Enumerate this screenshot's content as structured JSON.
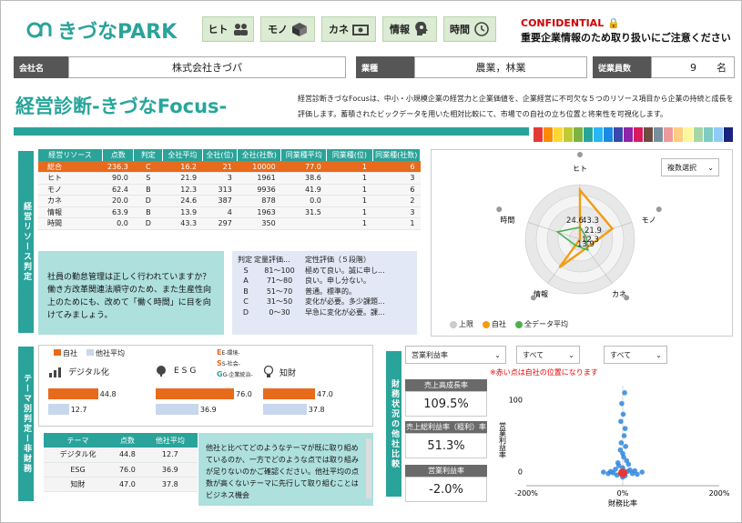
{
  "logo": {
    "text": "きづなPARK"
  },
  "nav": [
    {
      "label": "ヒト",
      "icon": "people-icon"
    },
    {
      "label": "モノ",
      "icon": "box-icon"
    },
    {
      "label": "カネ",
      "icon": "money-icon"
    },
    {
      "label": "情報",
      "icon": "head-gear-icon"
    },
    {
      "label": "時間",
      "icon": "clock-icon"
    }
  ],
  "confidential": {
    "title": "CONFIDENTIAL",
    "note": "重要企業情報のため取り扱いにご注意ください"
  },
  "company": {
    "label": "会社名",
    "value": "株式会社きづパ"
  },
  "industry": {
    "label": "業種",
    "value": "農業，林業"
  },
  "employees": {
    "label": "従業員数",
    "value": "9",
    "unit": "名"
  },
  "page_title": "経営診断-きづなFocus-",
  "description": "経営診断きづなFocusは、中小・小規模企業の経営力と企業価値を、企業経営に不可欠な５つのリソース項目から企業の持続と成長を評価します。蓄積されたビックデータを用いた相対比較にて、市場での自社の立ち位置と将来性を可視化します。",
  "colors": {
    "accent": "#2aa39a",
    "orange": "#e86a1c",
    "swatches": [
      "#e53935",
      "#fb8c00",
      "#fdd835",
      "#c0ca33",
      "#7cb342",
      "#26a69a",
      "#29b6f6",
      "#1e88e5",
      "#3949ab",
      "#8e24aa",
      "#d81b60",
      "#6d4c41",
      "#78909c",
      "#ef9a9a",
      "#ffcc80",
      "#fff59d",
      "#a5d6a7",
      "#80cbc4",
      "#90caf9",
      "#1a237e"
    ]
  },
  "side_labels": {
    "resource": "経営リソース判定",
    "theme": "テーマ別判定ー非財務",
    "finance": "財務状況の他社比較"
  },
  "resource_table": {
    "headers": [
      "経営リソース",
      "点数",
      "判定",
      "全社平均",
      "全社(位)",
      "全社(社数)",
      "同業種平均",
      "同業種(位)",
      "同業種(社数)"
    ],
    "rows": [
      [
        "総合",
        "236.3",
        "C",
        "16.2",
        "21",
        "10000",
        "77.0",
        "1",
        "6"
      ],
      [
        "ヒト",
        "90.0",
        "S",
        "21.9",
        "3",
        "1961",
        "38.6",
        "1",
        "3"
      ],
      [
        "モノ",
        "62.4",
        "B",
        "12.3",
        "313",
        "9936",
        "41.9",
        "1",
        "6"
      ],
      [
        "カネ",
        "20.0",
        "D",
        "24.6",
        "387",
        "878",
        "0.0",
        "1",
        "2"
      ],
      [
        "情報",
        "63.9",
        "B",
        "13.9",
        "4",
        "1963",
        "31.5",
        "1",
        "3"
      ],
      [
        "時間",
        "0.0",
        "D",
        "43.3",
        "297",
        "350",
        "",
        "1",
        "1"
      ]
    ]
  },
  "advice": "社員の勤怠管理は正しく行われていますか？働き方改革関連法順守のため、また生産性向上のためにも、改めて「働く時間」に目を向けてみましょう。",
  "eval_table": {
    "headers": [
      "判定",
      "定量評価...",
      "定性評価（５段階）"
    ],
    "rows": [
      [
        "S",
        "81〜100",
        "極めて良い。誠に申し..."
      ],
      [
        "A",
        "71〜80",
        "良い。申し分ない。"
      ],
      [
        "B",
        "51〜70",
        "普通。標準的。"
      ],
      [
        "C",
        "31〜50",
        "変化が必要。多少課題..."
      ],
      [
        "D",
        "0〜30",
        "早急に変化が必要。課..."
      ]
    ]
  },
  "radar": {
    "select": "複数選択",
    "axes": [
      "ヒト",
      "モノ",
      "カネ",
      "情報",
      "時間"
    ],
    "labels": [
      "43.3",
      "21.9",
      "12.3",
      "13.9",
      "24.6"
    ],
    "legend": [
      "上限",
      "自社",
      "全データ平均"
    ],
    "colors": [
      "#cccccc",
      "#f39c12",
      "#4caf50"
    ]
  },
  "theme": {
    "legend": [
      "自社",
      "他社平均"
    ],
    "groups": [
      {
        "name": "デジタル化",
        "own": 44.8,
        "avg": 12.7
      },
      {
        "name": "ESG",
        "own": 76.0,
        "avg": 36.9
      },
      {
        "name": "知財",
        "own": 47.0,
        "avg": 37.8
      }
    ],
    "esg_notes": [
      "E-環境-",
      "S-社会-",
      "G-企業統治-"
    ],
    "table": {
      "headers": [
        "テーマ",
        "点数",
        "他社平均"
      ],
      "rows": [
        [
          "デジタル化",
          "44.8",
          "12.7"
        ],
        [
          "ESG",
          "76.0",
          "36.9"
        ],
        [
          "知財",
          "47.0",
          "37.8"
        ]
      ]
    },
    "comment": "他社と比べてどのようなテーマが既に取り組めているのか、一方でどのような点では取り組みが足りないのかご確認ください。他社平均の点数が高くないテーマに先行して取り組むことはビジネス機会"
  },
  "finance": {
    "dropdowns": [
      "営業利益率",
      "すべて",
      "すべて"
    ],
    "red_note": "※赤い点は自社の位置になります",
    "kpis": [
      {
        "label": "売上高成長率",
        "value": "109.5%"
      },
      {
        "label": "売上総利益率（粗利）率",
        "value": "51.3%"
      },
      {
        "label": "営業利益率",
        "value": "-2.0%"
      }
    ],
    "scatter": {
      "ylabel": "営業利益率",
      "xlabel": "財務比率",
      "yticks": [
        "100",
        "0"
      ],
      "xticks": [
        "-200%",
        "0%",
        "200%"
      ]
    }
  },
  "chart_data": [
    {
      "type": "radar",
      "axes": [
        "ヒト",
        "モノ",
        "カネ",
        "情報",
        "時間"
      ],
      "series": [
        {
          "name": "上限",
          "values": [
            100,
            100,
            100,
            100,
            100
          ]
        },
        {
          "name": "自社",
          "values": [
            90.0,
            62.4,
            20.0,
            63.9,
            0.0
          ]
        },
        {
          "name": "全データ平均",
          "values": [
            21.9,
            12.3,
            24.6,
            13.9,
            43.3
          ]
        }
      ]
    },
    {
      "type": "bar",
      "categories": [
        "デジタル化",
        "ESG",
        "知財"
      ],
      "series": [
        {
          "name": "自社",
          "values": [
            44.8,
            76.0,
            47.0
          ]
        },
        {
          "name": "他社平均",
          "values": [
            12.7,
            36.9,
            37.8
          ]
        }
      ]
    },
    {
      "type": "scatter",
      "xlabel": "財務比率",
      "ylabel": "営業利益率",
      "xlim": [
        -200,
        200
      ],
      "own": {
        "x": 0,
        "y": -2.0
      },
      "points": [
        [
          0,
          5
        ],
        [
          2,
          20
        ],
        [
          -3,
          40
        ],
        [
          5,
          60
        ],
        [
          1,
          80
        ],
        [
          -2,
          95
        ],
        [
          4,
          110
        ],
        [
          -5,
          30
        ],
        [
          8,
          15
        ],
        [
          -8,
          8
        ],
        [
          10,
          0
        ],
        [
          -12,
          -5
        ],
        [
          15,
          2
        ],
        [
          -15,
          3
        ],
        [
          20,
          -3
        ],
        [
          -20,
          -2
        ],
        [
          25,
          1
        ],
        [
          -25,
          0
        ],
        [
          30,
          -4
        ],
        [
          -30,
          -3
        ],
        [
          40,
          -1
        ],
        [
          -40,
          -1
        ],
        [
          3,
          50
        ],
        [
          -4,
          70
        ],
        [
          6,
          35
        ],
        [
          0,
          25
        ],
        [
          12,
          10
        ],
        [
          -10,
          12
        ],
        [
          0,
          -8
        ],
        [
          5,
          -6
        ]
      ]
    }
  ]
}
